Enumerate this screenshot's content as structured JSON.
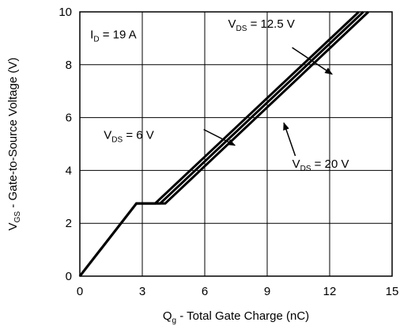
{
  "chart_data": {
    "type": "line",
    "x_axis": {
      "label_main": "Q",
      "label_sub": "g",
      "label_rest": " - Total Gate Charge (nC)",
      "min": 0,
      "max": 15,
      "ticks": [
        0,
        3,
        6,
        9,
        12,
        15
      ],
      "tick_labels": [
        "0",
        "3",
        "6",
        "9",
        "12",
        "15"
      ]
    },
    "y_axis": {
      "label_main": "V",
      "label_sub": "GS",
      "label_rest": " - Gate-to-Source Voltage (V)",
      "min": 0,
      "max": 10,
      "ticks": [
        0,
        2,
        4,
        6,
        8,
        10
      ],
      "tick_labels": [
        "0",
        "2",
        "4",
        "6",
        "8",
        "10"
      ]
    },
    "grid": true,
    "series": [
      {
        "name_main": "V",
        "name_sub": "DS",
        "name_rest": " = 6 V",
        "points": [
          [
            0,
            0
          ],
          [
            2.72,
            2.75
          ],
          [
            3.62,
            2.75
          ],
          [
            13.4,
            10
          ]
        ]
      },
      {
        "name_main": "V",
        "name_sub": "DS",
        "name_rest": " = 12.5 V",
        "points": [
          [
            0,
            0
          ],
          [
            2.72,
            2.75
          ],
          [
            3.86,
            2.75
          ],
          [
            13.62,
            10
          ]
        ]
      },
      {
        "name_main": "V",
        "name_sub": "DS",
        "name_rest": " = 20 V",
        "points": [
          [
            0,
            0
          ],
          [
            2.72,
            2.75
          ],
          [
            4.1,
            2.75
          ],
          [
            13.86,
            10
          ]
        ]
      }
    ],
    "annotations": {
      "condition": {
        "main": "I",
        "sub": "D",
        "rest": " = 19 A",
        "pos": [
          0.5,
          9.0
        ]
      },
      "labels": [
        {
          "series": 0,
          "pos": [
            1.15,
            5.2
          ],
          "arrow_from": [
            5.95,
            5.55
          ],
          "arrow_to": [
            7.45,
            4.95
          ]
        },
        {
          "series": 1,
          "pos": [
            7.12,
            9.4
          ],
          "arrow_from": [
            10.2,
            8.65
          ],
          "arrow_to": [
            12.12,
            7.64
          ]
        },
        {
          "series": 2,
          "pos": [
            10.2,
            4.1
          ],
          "arrow_from": [
            10.35,
            4.55
          ],
          "arrow_to": [
            9.8,
            5.8
          ]
        }
      ]
    }
  }
}
